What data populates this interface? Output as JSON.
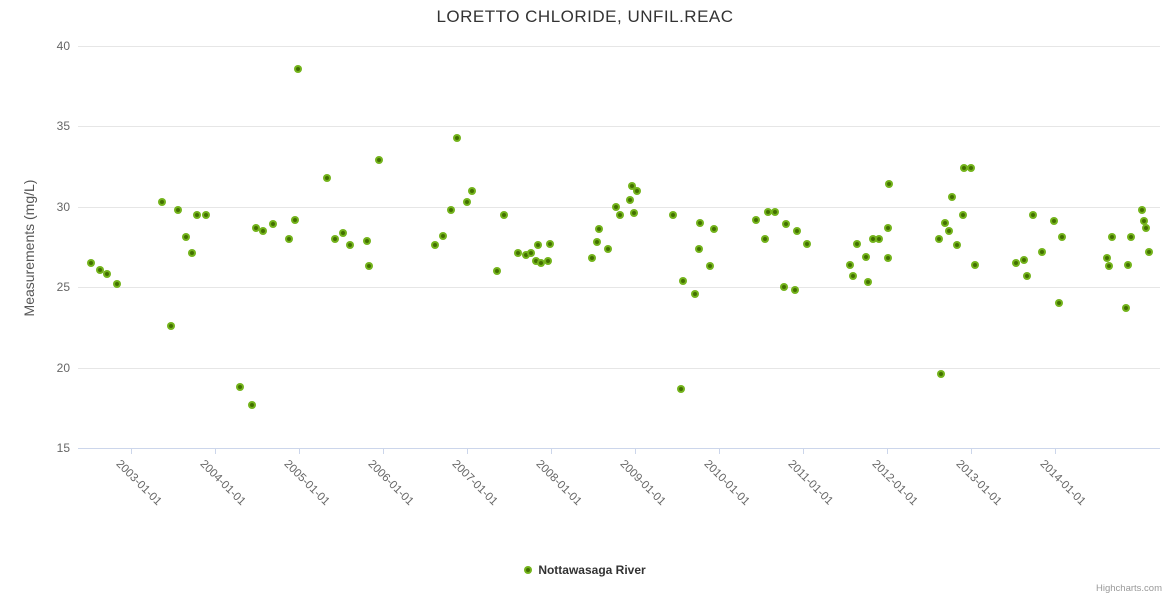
{
  "chart_data": {
    "type": "scatter",
    "title": "LORETTO CHLORIDE, UNFIL.REAC",
    "xlabel": "",
    "ylabel": "Measurements (mg/L)",
    "ylim": [
      15,
      40
    ],
    "xlim": [
      2002.37,
      2015.25
    ],
    "y_ticks": [
      40,
      35,
      30,
      25,
      20,
      15
    ],
    "x_tick_values": [
      2003,
      2004,
      2005,
      2006,
      2007,
      2008,
      2009,
      2010,
      2011,
      2012,
      2013,
      2014
    ],
    "x_tick_labels": [
      "2003-01-01",
      "2004-01-01",
      "2005-01-01",
      "2006-01-01",
      "2007-01-01",
      "2008-01-01",
      "2009-01-01",
      "2010-01-01",
      "2011-01-01",
      "2012-01-01",
      "2013-01-01",
      "2014-01-01"
    ],
    "grid": "horizontal",
    "legend_position": "bottom-center",
    "marker_color": "#74b41c",
    "marker_center_color": "#426f00",
    "grid_color": "#e6e6e6",
    "axis_line_color": "#ccd6eb",
    "credits": "Highcharts.com",
    "series": [
      {
        "name": "Nottawasaga River",
        "points": [
          [
            2002.52,
            26.5
          ],
          [
            2002.63,
            26.1
          ],
          [
            2002.71,
            25.8
          ],
          [
            2002.83,
            25.2
          ],
          [
            2003.37,
            30.3
          ],
          [
            2003.48,
            22.6
          ],
          [
            2003.56,
            29.8
          ],
          [
            2003.65,
            28.1
          ],
          [
            2003.73,
            27.1
          ],
          [
            2003.79,
            29.5
          ],
          [
            2003.89,
            29.5
          ],
          [
            2004.3,
            18.8
          ],
          [
            2004.44,
            17.7
          ],
          [
            2004.49,
            28.7
          ],
          [
            2004.57,
            28.5
          ],
          [
            2004.69,
            28.9
          ],
          [
            2004.88,
            28.0
          ],
          [
            2004.95,
            29.2
          ],
          [
            2004.99,
            38.6
          ],
          [
            2005.33,
            31.8
          ],
          [
            2005.43,
            28.0
          ],
          [
            2005.52,
            28.4
          ],
          [
            2005.61,
            27.6
          ],
          [
            2005.81,
            27.9
          ],
          [
            2005.83,
            26.3
          ],
          [
            2005.95,
            32.9
          ],
          [
            2006.62,
            27.6
          ],
          [
            2006.71,
            28.2
          ],
          [
            2006.81,
            29.8
          ],
          [
            2006.88,
            34.3
          ],
          [
            2007.0,
            30.3
          ],
          [
            2007.06,
            31.0
          ],
          [
            2007.36,
            26.0
          ],
          [
            2007.44,
            29.5
          ],
          [
            2007.61,
            27.1
          ],
          [
            2007.7,
            27.0
          ],
          [
            2007.76,
            27.1
          ],
          [
            2007.82,
            26.6
          ],
          [
            2007.85,
            27.6
          ],
          [
            2007.88,
            26.5
          ],
          [
            2007.96,
            26.6
          ],
          [
            2007.99,
            27.7
          ],
          [
            2008.49,
            26.8
          ],
          [
            2008.55,
            27.8
          ],
          [
            2008.57,
            28.6
          ],
          [
            2008.68,
            27.4
          ],
          [
            2008.77,
            30.0
          ],
          [
            2008.82,
            29.5
          ],
          [
            2008.94,
            30.4
          ],
          [
            2008.96,
            31.3
          ],
          [
            2008.99,
            29.6
          ],
          [
            2009.02,
            31.0
          ],
          [
            2009.45,
            29.5
          ],
          [
            2009.55,
            18.7
          ],
          [
            2009.57,
            25.4
          ],
          [
            2009.71,
            24.6
          ],
          [
            2009.76,
            27.4
          ],
          [
            2009.77,
            29.0
          ],
          [
            2009.89,
            26.3
          ],
          [
            2009.94,
            28.6
          ],
          [
            2010.44,
            29.2
          ],
          [
            2010.55,
            28.0
          ],
          [
            2010.58,
            29.7
          ],
          [
            2010.67,
            29.7
          ],
          [
            2010.77,
            25.0
          ],
          [
            2010.8,
            28.9
          ],
          [
            2010.9,
            24.8
          ],
          [
            2010.93,
            28.5
          ],
          [
            2011.05,
            27.7
          ],
          [
            2011.56,
            26.4
          ],
          [
            2011.6,
            25.7
          ],
          [
            2011.64,
            27.7
          ],
          [
            2011.75,
            26.9
          ],
          [
            2011.77,
            25.3
          ],
          [
            2011.83,
            28.0
          ],
          [
            2011.9,
            28.0
          ],
          [
            2012.01,
            28.7
          ],
          [
            2012.01,
            26.8
          ],
          [
            2012.02,
            31.4
          ],
          [
            2012.62,
            28.0
          ],
          [
            2012.64,
            19.6
          ],
          [
            2012.69,
            29.0
          ],
          [
            2012.74,
            28.5
          ],
          [
            2012.77,
            30.6
          ],
          [
            2012.83,
            27.6
          ],
          [
            2012.9,
            29.5
          ],
          [
            2012.92,
            32.4
          ],
          [
            2013.0,
            32.4
          ],
          [
            2013.05,
            26.4
          ],
          [
            2013.54,
            26.5
          ],
          [
            2013.63,
            26.7
          ],
          [
            2013.67,
            25.7
          ],
          [
            2013.74,
            29.5
          ],
          [
            2013.85,
            27.2
          ],
          [
            2013.99,
            29.1
          ],
          [
            2014.05,
            24.0
          ],
          [
            2014.08,
            28.1
          ],
          [
            2014.62,
            26.8
          ],
          [
            2014.64,
            26.3
          ],
          [
            2014.68,
            28.1
          ],
          [
            2014.85,
            23.7
          ],
          [
            2014.87,
            26.4
          ],
          [
            2014.9,
            28.1
          ],
          [
            2015.03,
            29.8
          ],
          [
            2015.06,
            29.1
          ],
          [
            2015.08,
            28.7
          ],
          [
            2015.12,
            27.2
          ]
        ]
      }
    ]
  }
}
